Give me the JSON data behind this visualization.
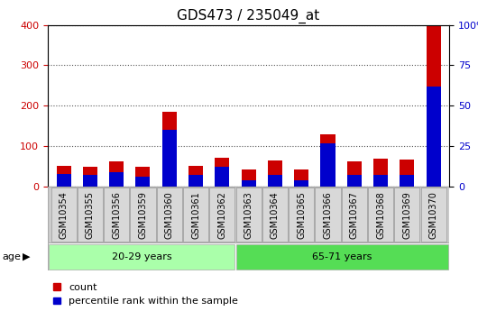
{
  "title": "GDS473 / 235049_at",
  "samples": [
    "GSM10354",
    "GSM10355",
    "GSM10356",
    "GSM10359",
    "GSM10360",
    "GSM10361",
    "GSM10362",
    "GSM10363",
    "GSM10364",
    "GSM10365",
    "GSM10366",
    "GSM10367",
    "GSM10368",
    "GSM10369",
    "GSM10370"
  ],
  "count": [
    52,
    50,
    62,
    48,
    185,
    52,
    72,
    43,
    65,
    43,
    130,
    63,
    70,
    68,
    400
  ],
  "percentile_pct": [
    8,
    7,
    9,
    6,
    35,
    7,
    12,
    4,
    7,
    4,
    27,
    7,
    7,
    7,
    62
  ],
  "groups": [
    {
      "label": "20-29 years",
      "start": 0,
      "end": 7,
      "color": "#aaffaa"
    },
    {
      "label": "65-71 years",
      "start": 7,
      "end": 15,
      "color": "#55dd55"
    }
  ],
  "age_label": "age",
  "bar_color_count": "#cc0000",
  "bar_color_pct": "#0000cc",
  "bar_width": 0.55,
  "ylim_left": [
    0,
    400
  ],
  "ylim_right": [
    0,
    100
  ],
  "yticks_left": [
    0,
    100,
    200,
    300,
    400
  ],
  "yticks_right": [
    0,
    25,
    50,
    75,
    100
  ],
  "grid_color": "#555555",
  "bg_color": "#ffffff",
  "xticklabel_bg": "#cccccc",
  "legend_count": "count",
  "legend_pct": "percentile rank within the sample",
  "title_fontsize": 11,
  "tick_fontsize": 7,
  "label_fontsize": 8
}
